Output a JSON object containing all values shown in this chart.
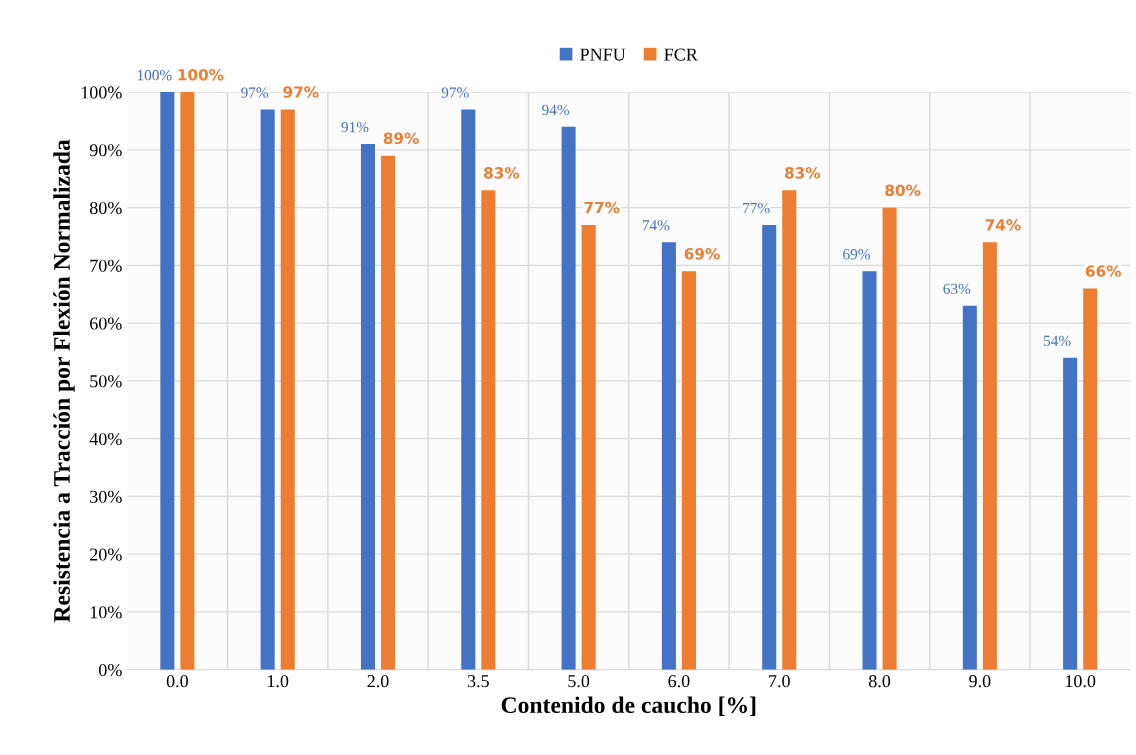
{
  "chart_data": {
    "type": "bar",
    "xlabel": "Contenido de caucho [%]",
    "ylabel": "Resistencia a Tracción por Flexión Normalizada",
    "categories": [
      "0.0",
      "1.0",
      "2.0",
      "3.5",
      "5.0",
      "6.0",
      "7.0",
      "8.0",
      "9.0",
      "10.0"
    ],
    "series": [
      {
        "name": "PNFU",
        "color": "#4472c4",
        "values": [
          100,
          97,
          91,
          97,
          94,
          74,
          77,
          69,
          63,
          54
        ],
        "value_labels": [
          "100%",
          "97%",
          "91%",
          "97%",
          "94%",
          "74%",
          "77%",
          "69%",
          "63%",
          "54%"
        ]
      },
      {
        "name": "FCR",
        "color": "#ed7d31",
        "values": [
          100,
          97,
          89,
          83,
          77,
          69,
          83,
          80,
          74,
          66
        ],
        "value_labels": [
          "100%",
          "97%",
          "89%",
          "83%",
          "77%",
          "69%",
          "83%",
          "80%",
          "74%",
          "66%"
        ]
      }
    ],
    "ylim": [
      0,
      100
    ],
    "yticks": [
      {
        "value": 0,
        "label": "0%"
      },
      {
        "value": 10,
        "label": "10%"
      },
      {
        "value": 20,
        "label": "20%"
      },
      {
        "value": 30,
        "label": "30%"
      },
      {
        "value": 40,
        "label": "40%"
      },
      {
        "value": 50,
        "label": "50%"
      },
      {
        "value": 60,
        "label": "60%"
      },
      {
        "value": 70,
        "label": "70%"
      },
      {
        "value": 80,
        "label": "80%"
      },
      {
        "value": 90,
        "label": "90%"
      },
      {
        "value": 100,
        "label": "100%"
      }
    ],
    "grid": true,
    "legend": "top"
  }
}
